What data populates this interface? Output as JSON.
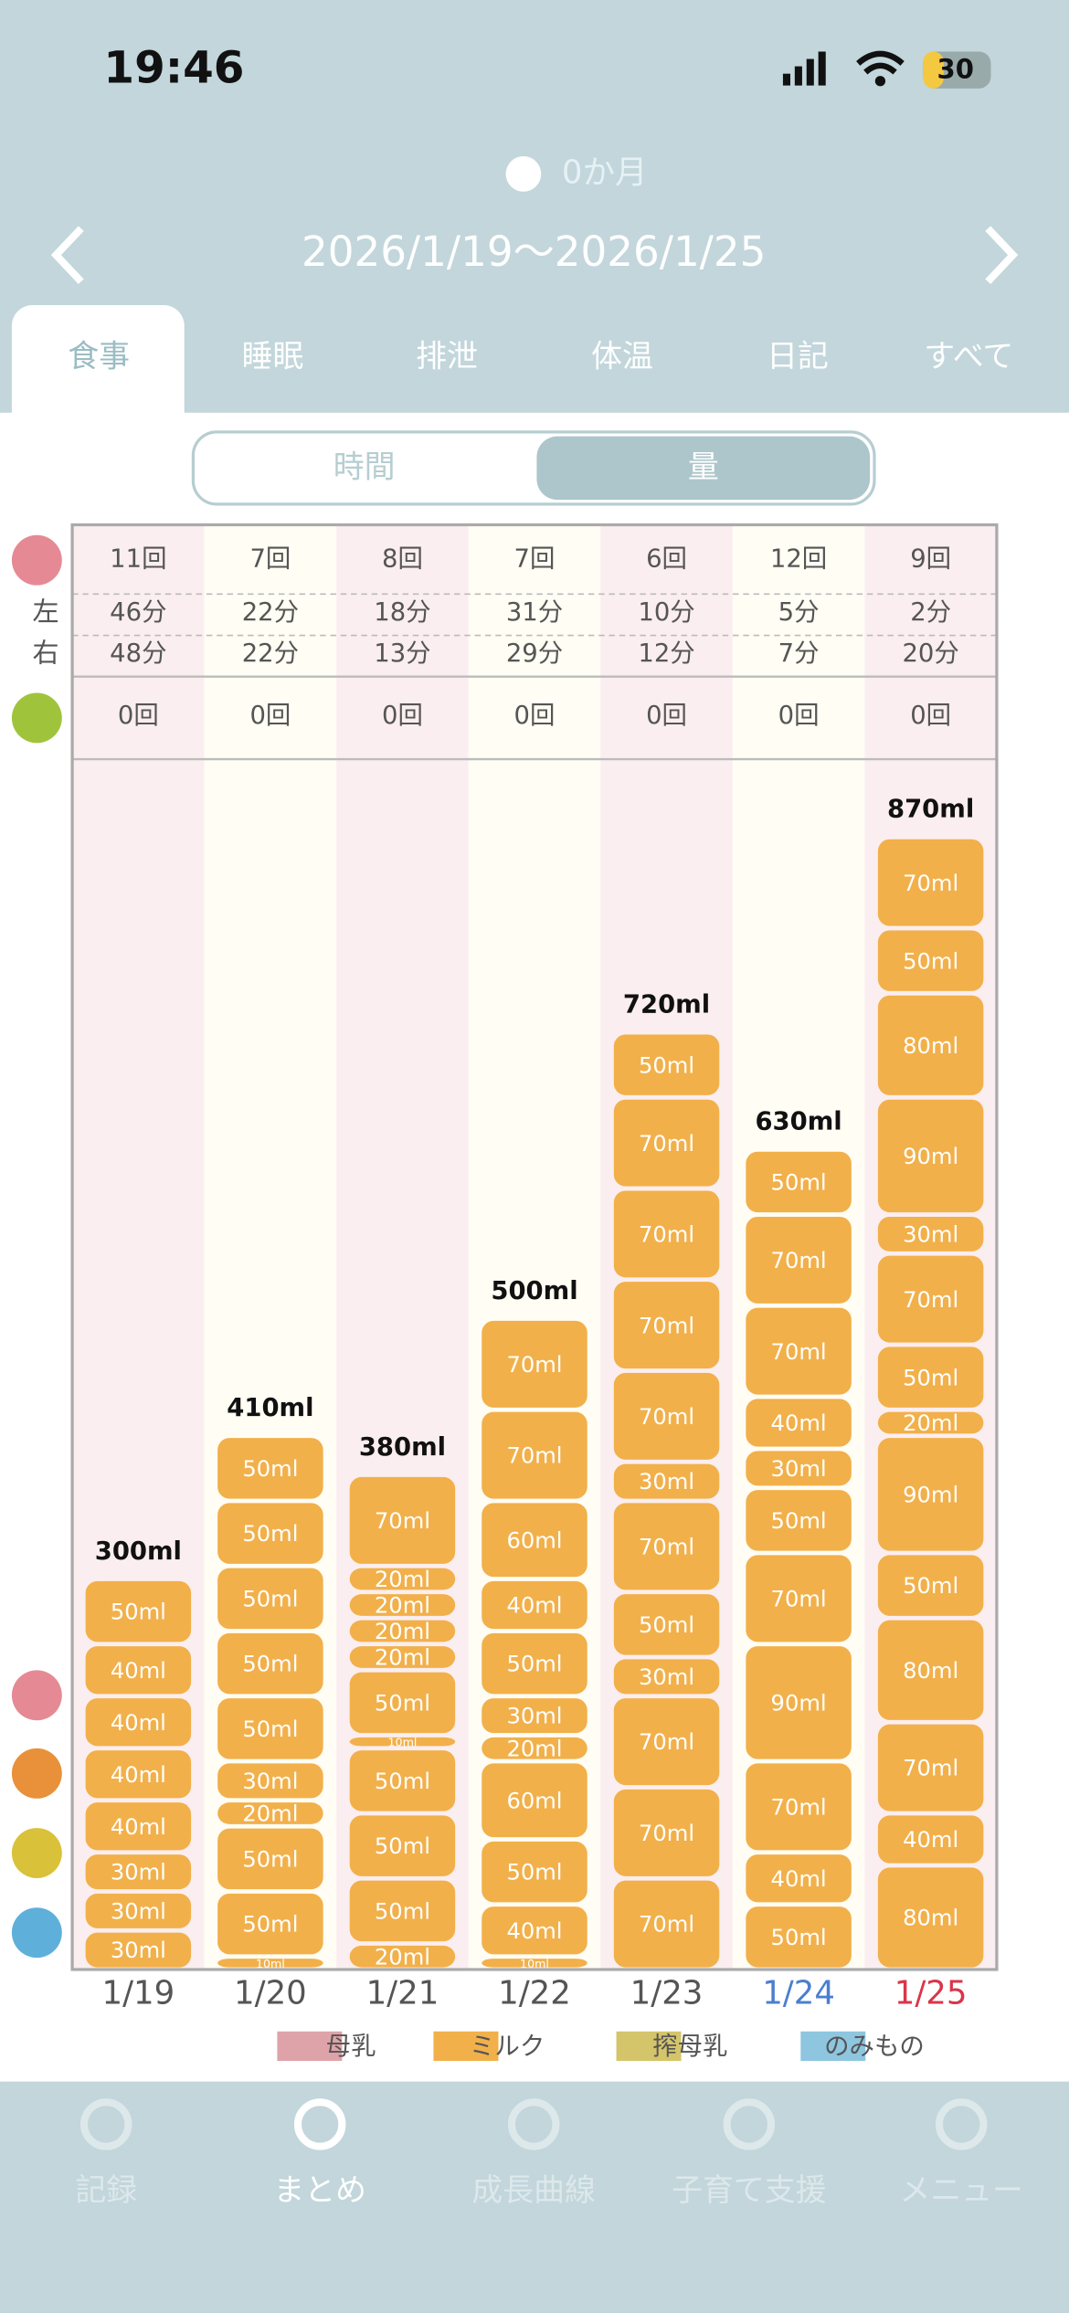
{
  "status_bar": {
    "time": "19:46",
    "battery": "30"
  },
  "header": {
    "age": "0か月",
    "date_range": "2026/1/19〜2026/1/25"
  },
  "tabs": [
    "食事",
    "睡眠",
    "排泄",
    "体温",
    "日記",
    "すべて"
  ],
  "toggle": [
    "時間",
    "量"
  ],
  "table": {
    "side_labels": [
      "左",
      "右"
    ],
    "columns": [
      {
        "count": "11回",
        "left": "46分",
        "right": "48分",
        "baby_food": "0回"
      },
      {
        "count": "7回",
        "left": "22分",
        "right": "22分",
        "baby_food": "0回"
      },
      {
        "count": "8回",
        "left": "18分",
        "right": "13分",
        "baby_food": "0回"
      },
      {
        "count": "7回",
        "left": "31分",
        "right": "29分",
        "baby_food": "0回"
      },
      {
        "count": "6回",
        "left": "10分",
        "right": "12分",
        "baby_food": "0回"
      },
      {
        "count": "12回",
        "left": "5分",
        "right": "7分",
        "baby_food": "0回"
      },
      {
        "count": "9回",
        "left": "2分",
        "right": "20分",
        "baby_food": "0回"
      }
    ]
  },
  "chart_data": {
    "type": "stacked-bar",
    "categories": [
      "1/19",
      "1/20",
      "1/21",
      "1/22",
      "1/23",
      "1/24",
      "1/25"
    ],
    "category_colors": [
      "#555555",
      "#555555",
      "#555555",
      "#555555",
      "#555555",
      "#4a7fd0",
      "#d9364a"
    ],
    "stacks": [
      {
        "values": [
          30,
          30,
          30,
          40,
          40,
          40,
          40,
          50
        ],
        "value_labels": [
          "30ml",
          "30ml",
          "30ml",
          "40ml",
          "40ml",
          "40ml",
          "40ml",
          "50ml"
        ],
        "total": 300,
        "total_label": "300ml"
      },
      {
        "values": [
          10,
          50,
          50,
          20,
          30,
          50,
          50,
          50,
          50,
          50
        ],
        "value_labels": [
          "10ml",
          "50ml",
          "50ml",
          "20ml",
          "30ml",
          "50ml",
          "50ml",
          "50ml",
          "50ml",
          "50ml"
        ],
        "total": 410,
        "total_label": "410ml"
      },
      {
        "values": [
          20,
          50,
          50,
          50,
          10,
          50,
          20,
          20,
          20,
          20,
          70
        ],
        "value_labels": [
          "20ml",
          "50ml",
          "50ml",
          "50ml",
          "10ml",
          "50ml",
          "20ml",
          "20ml",
          "20ml",
          "20ml",
          "70ml"
        ],
        "total": 380,
        "total_label": "380ml"
      },
      {
        "values": [
          10,
          40,
          50,
          60,
          20,
          30,
          50,
          40,
          60,
          70,
          70
        ],
        "value_labels": [
          "10ml",
          "40ml",
          "50ml",
          "60ml",
          "20ml",
          "30ml",
          "50ml",
          "40ml",
          "60ml",
          "70ml",
          "70ml"
        ],
        "total": 500,
        "total_label": "500ml"
      },
      {
        "values": [
          70,
          70,
          70,
          30,
          50,
          70,
          30,
          70,
          70,
          70,
          70,
          50
        ],
        "value_labels": [
          "70ml",
          "70ml",
          "70ml",
          "30ml",
          "50ml",
          "70ml",
          "30ml",
          "70ml",
          "70ml",
          "70ml",
          "70ml",
          "50ml"
        ],
        "total": 720,
        "total_label": "720ml"
      },
      {
        "values": [
          50,
          40,
          70,
          90,
          70,
          50,
          30,
          40,
          70,
          70,
          50
        ],
        "value_labels": [
          "50ml",
          "40ml",
          "70ml",
          "90ml",
          "70ml",
          "50ml",
          "30ml",
          "40ml",
          "70ml",
          "70ml",
          "50ml"
        ],
        "total": 630,
        "total_label": "630ml"
      },
      {
        "values": [
          80,
          40,
          70,
          80,
          50,
          90,
          20,
          50,
          70,
          30,
          90,
          80,
          50,
          70
        ],
        "value_labels": [
          "80ml",
          "40ml",
          "70ml",
          "80ml",
          "50ml",
          "90ml",
          "20ml",
          "50ml",
          "70ml",
          "30ml",
          "90ml",
          "80ml",
          "50ml",
          "70ml"
        ],
        "total": 870,
        "total_label": "870ml"
      }
    ],
    "bar_series": 1,
    "legend": [
      {
        "name": "母乳",
        "color": "#dea3a9"
      },
      {
        "name": "ミルク",
        "color": "#f2b04a"
      },
      {
        "name": "搾母乳",
        "color": "#d4c46a"
      },
      {
        "name": "のみもの",
        "color": "#8ec6e0"
      }
    ]
  },
  "nav": [
    {
      "label": "記録",
      "active": false
    },
    {
      "label": "まとめ",
      "active": true
    },
    {
      "label": "成長曲線",
      "active": false
    },
    {
      "label": "子育て支援",
      "active": false
    },
    {
      "label": "メニュー",
      "active": false
    }
  ]
}
